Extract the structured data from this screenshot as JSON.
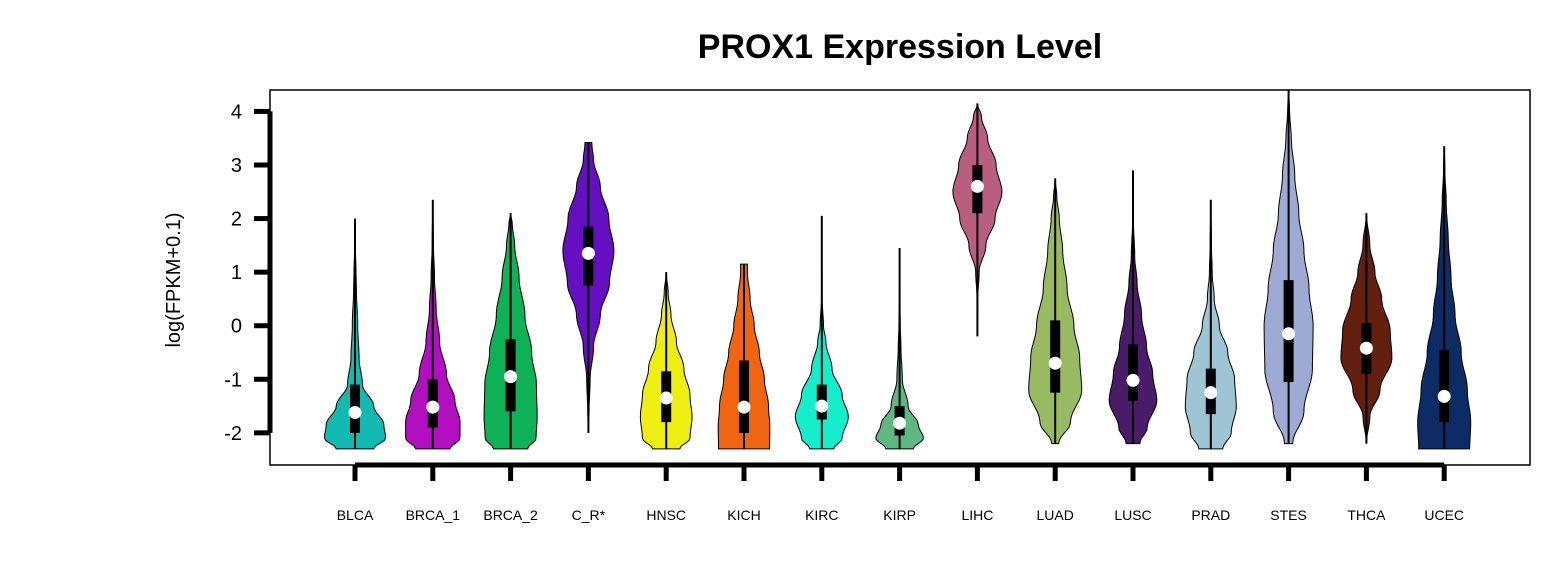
{
  "chart_data": {
    "type": "violin",
    "title": "PROX1 Expression Level",
    "ylabel": "log(FPKM+0.1)",
    "xlabel": "",
    "ylim": [
      -2.6,
      4.4
    ],
    "yticks": [
      4,
      3,
      2,
      1,
      0,
      -1,
      -2
    ],
    "grid": false,
    "categories": [
      "BLCA",
      "BRCA_1",
      "BRCA_2",
      "C_R*",
      "HNSC",
      "KICH",
      "KIRC",
      "KIRP",
      "LIHC",
      "LUAD",
      "LUSC",
      "PRAD",
      "STES",
      "THCA",
      "UCEC"
    ],
    "colors": [
      "#12b9b3",
      "#b20fc1",
      "#0fb157",
      "#6410c0",
      "#eeee10",
      "#f16410",
      "#16eecb",
      "#5db882",
      "#b95e7e",
      "#98ba63",
      "#4a1b68",
      "#9ec5d3",
      "#9daad3",
      "#64200e",
      "#0d2c66"
    ],
    "violins": [
      {
        "min": -2.3,
        "max": 2.0,
        "q1": -2.0,
        "median": -1.62,
        "q3": -1.1,
        "profile": [
          [
            -2.3,
            0.55
          ],
          [
            -2.1,
            0.9
          ],
          [
            -1.85,
            0.85
          ],
          [
            -1.5,
            0.55
          ],
          [
            -1.1,
            0.22
          ],
          [
            -0.6,
            0.12
          ],
          [
            0.0,
            0.08
          ],
          [
            0.7,
            0.04
          ],
          [
            1.0,
            0.03
          ],
          [
            1.5,
            0.01
          ],
          [
            2.0,
            0.0
          ]
        ]
      },
      {
        "min": -2.3,
        "max": 2.35,
        "q1": -1.9,
        "median": -1.52,
        "q3": -1.0,
        "profile": [
          [
            -2.3,
            0.5
          ],
          [
            -2.1,
            0.8
          ],
          [
            -1.8,
            0.8
          ],
          [
            -1.4,
            0.65
          ],
          [
            -0.9,
            0.4
          ],
          [
            -0.3,
            0.2
          ],
          [
            0.3,
            0.1
          ],
          [
            0.9,
            0.05
          ],
          [
            1.5,
            0.02
          ],
          [
            2.35,
            0.0
          ]
        ]
      },
      {
        "min": -2.3,
        "max": 2.1,
        "q1": -1.6,
        "median": -0.95,
        "q3": -0.25,
        "profile": [
          [
            -2.3,
            0.5
          ],
          [
            -2.1,
            0.75
          ],
          [
            -1.7,
            0.78
          ],
          [
            -1.1,
            0.76
          ],
          [
            -0.5,
            0.62
          ],
          [
            0.2,
            0.42
          ],
          [
            0.9,
            0.25
          ],
          [
            1.5,
            0.12
          ],
          [
            1.9,
            0.05
          ],
          [
            2.1,
            0.0
          ]
        ]
      },
      {
        "min": -2.0,
        "max": 3.42,
        "q1": 0.75,
        "median": 1.35,
        "q3": 1.85,
        "profile": [
          [
            -2.0,
            0.0
          ],
          [
            -1.6,
            0.02
          ],
          [
            -1.0,
            0.05
          ],
          [
            -0.4,
            0.15
          ],
          [
            0.2,
            0.35
          ],
          [
            0.8,
            0.62
          ],
          [
            1.4,
            0.75
          ],
          [
            2.0,
            0.6
          ],
          [
            2.6,
            0.35
          ],
          [
            3.1,
            0.15
          ],
          [
            3.42,
            0.1
          ]
        ]
      },
      {
        "min": -2.3,
        "max": 1.0,
        "q1": -1.8,
        "median": -1.35,
        "q3": -0.85,
        "profile": [
          [
            -2.3,
            0.4
          ],
          [
            -2.1,
            0.7
          ],
          [
            -1.7,
            0.76
          ],
          [
            -1.3,
            0.7
          ],
          [
            -0.8,
            0.52
          ],
          [
            -0.3,
            0.3
          ],
          [
            0.2,
            0.14
          ],
          [
            0.6,
            0.06
          ],
          [
            1.0,
            0.0
          ]
        ]
      },
      {
        "min": -2.3,
        "max": 1.15,
        "q1": -2.0,
        "median": -1.52,
        "q3": -0.65,
        "profile": [
          [
            -2.3,
            0.75
          ],
          [
            -1.9,
            0.76
          ],
          [
            -1.5,
            0.72
          ],
          [
            -1.0,
            0.6
          ],
          [
            -0.5,
            0.45
          ],
          [
            0.0,
            0.3
          ],
          [
            0.5,
            0.18
          ],
          [
            1.0,
            0.1
          ],
          [
            1.15,
            0.1
          ]
        ]
      },
      {
        "min": -2.3,
        "max": 2.05,
        "q1": -1.75,
        "median": -1.5,
        "q3": -1.1,
        "profile": [
          [
            -2.3,
            0.35
          ],
          [
            -2.1,
            0.6
          ],
          [
            -1.7,
            0.78
          ],
          [
            -1.3,
            0.6
          ],
          [
            -0.8,
            0.3
          ],
          [
            -0.3,
            0.12
          ],
          [
            0.0,
            0.05
          ],
          [
            0.5,
            0.01
          ],
          [
            2.05,
            0.0
          ]
        ]
      },
      {
        "min": -2.3,
        "max": 1.45,
        "q1": -2.05,
        "median": -1.82,
        "q3": -1.5,
        "profile": [
          [
            -2.3,
            0.4
          ],
          [
            -2.1,
            0.7
          ],
          [
            -1.85,
            0.55
          ],
          [
            -1.5,
            0.25
          ],
          [
            -1.0,
            0.08
          ],
          [
            -0.4,
            0.04
          ],
          [
            0.0,
            0.02
          ],
          [
            0.5,
            0.005
          ],
          [
            1.45,
            0.0
          ]
        ]
      },
      {
        "min": -0.2,
        "max": 4.15,
        "q1": 2.1,
        "median": 2.6,
        "q3": 3.0,
        "profile": [
          [
            -0.2,
            0.0
          ],
          [
            0.5,
            0.01
          ],
          [
            1.0,
            0.05
          ],
          [
            1.5,
            0.25
          ],
          [
            2.0,
            0.52
          ],
          [
            2.5,
            0.72
          ],
          [
            3.0,
            0.55
          ],
          [
            3.5,
            0.3
          ],
          [
            3.9,
            0.12
          ],
          [
            4.15,
            0.0
          ]
        ]
      },
      {
        "min": -2.2,
        "max": 2.75,
        "q1": -1.25,
        "median": -0.7,
        "q3": 0.1,
        "profile": [
          [
            -2.2,
            0.1
          ],
          [
            -1.8,
            0.45
          ],
          [
            -1.2,
            0.78
          ],
          [
            -0.6,
            0.72
          ],
          [
            0.0,
            0.55
          ],
          [
            0.7,
            0.35
          ],
          [
            1.4,
            0.22
          ],
          [
            2.0,
            0.12
          ],
          [
            2.4,
            0.05
          ],
          [
            2.75,
            0.0
          ]
        ]
      },
      {
        "min": -2.2,
        "max": 2.9,
        "q1": -1.4,
        "median": -1.02,
        "q3": -0.35,
        "profile": [
          [
            -2.2,
            0.2
          ],
          [
            -1.9,
            0.42
          ],
          [
            -1.4,
            0.7
          ],
          [
            -0.9,
            0.58
          ],
          [
            -0.4,
            0.4
          ],
          [
            0.2,
            0.25
          ],
          [
            0.8,
            0.12
          ],
          [
            1.3,
            0.05
          ],
          [
            2.0,
            0.01
          ],
          [
            2.9,
            0.0
          ]
        ]
      },
      {
        "min": -2.3,
        "max": 2.35,
        "q1": -1.65,
        "median": -1.25,
        "q3": -0.8,
        "profile": [
          [
            -2.3,
            0.35
          ],
          [
            -2.0,
            0.6
          ],
          [
            -1.5,
            0.75
          ],
          [
            -1.0,
            0.7
          ],
          [
            -0.5,
            0.5
          ],
          [
            0.0,
            0.25
          ],
          [
            0.5,
            0.1
          ],
          [
            1.0,
            0.04
          ],
          [
            1.5,
            0.02
          ],
          [
            2.35,
            0.0
          ]
        ]
      },
      {
        "min": -2.2,
        "max": 4.4,
        "q1": -1.05,
        "median": -0.15,
        "q3": 0.85,
        "profile": [
          [
            -2.2,
            0.12
          ],
          [
            -1.6,
            0.45
          ],
          [
            -0.8,
            0.7
          ],
          [
            0.0,
            0.72
          ],
          [
            0.7,
            0.6
          ],
          [
            1.4,
            0.45
          ],
          [
            2.1,
            0.3
          ],
          [
            2.8,
            0.18
          ],
          [
            3.5,
            0.08
          ],
          [
            4.0,
            0.03
          ],
          [
            4.4,
            0.0
          ]
        ]
      },
      {
        "min": -2.2,
        "max": 2.1,
        "q1": -0.9,
        "median": -0.42,
        "q3": 0.05,
        "profile": [
          [
            -2.2,
            0.0
          ],
          [
            -1.7,
            0.1
          ],
          [
            -1.2,
            0.4
          ],
          [
            -0.6,
            0.75
          ],
          [
            -0.1,
            0.7
          ],
          [
            0.5,
            0.45
          ],
          [
            1.0,
            0.25
          ],
          [
            1.5,
            0.1
          ],
          [
            2.1,
            0.0
          ]
        ]
      },
      {
        "min": -2.3,
        "max": 3.35,
        "q1": -1.8,
        "median": -1.32,
        "q3": -0.45,
        "profile": [
          [
            -2.3,
            0.75
          ],
          [
            -1.8,
            0.78
          ],
          [
            -1.2,
            0.68
          ],
          [
            -0.5,
            0.5
          ],
          [
            0.2,
            0.32
          ],
          [
            0.9,
            0.2
          ],
          [
            1.6,
            0.12
          ],
          [
            2.3,
            0.06
          ],
          [
            2.9,
            0.02
          ],
          [
            3.35,
            0.0
          ]
        ]
      }
    ]
  }
}
